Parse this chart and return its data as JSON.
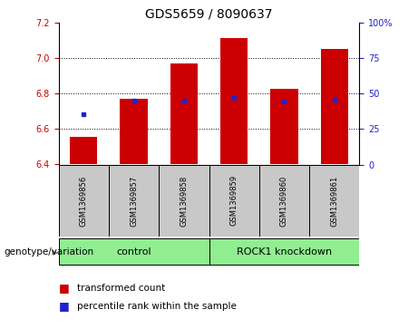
{
  "title": "GDS5659 / 8090637",
  "samples": [
    "GSM1369856",
    "GSM1369857",
    "GSM1369858",
    "GSM1369859",
    "GSM1369860",
    "GSM1369861"
  ],
  "red_values": [
    6.555,
    6.77,
    6.97,
    7.115,
    6.83,
    7.055
  ],
  "blue_values": [
    6.685,
    6.76,
    6.76,
    6.775,
    6.755,
    6.765
  ],
  "ylim_left": [
    6.4,
    7.2
  ],
  "ylim_right": [
    0,
    100
  ],
  "yticks_left": [
    6.4,
    6.6,
    6.8,
    7.0,
    7.2
  ],
  "yticks_right": [
    0,
    25,
    50,
    75,
    100
  ],
  "bar_color": "#CC0000",
  "dot_color": "#2222CC",
  "bar_bottom": 6.4,
  "bar_width": 0.55,
  "background_sample": "#C8C8C8",
  "group_color": "#90EE90",
  "legend_red": "transformed count",
  "legend_blue": "percentile rank within the sample",
  "genotype_label": "genotype/variation",
  "group_labels": [
    "control",
    "ROCK1 knockdown"
  ],
  "group_ranges": [
    [
      0,
      2
    ],
    [
      3,
      5
    ]
  ],
  "grid_lines": [
    6.6,
    6.8,
    7.0
  ],
  "title_fontsize": 10,
  "tick_fontsize": 7,
  "sample_fontsize": 6,
  "group_fontsize": 8
}
